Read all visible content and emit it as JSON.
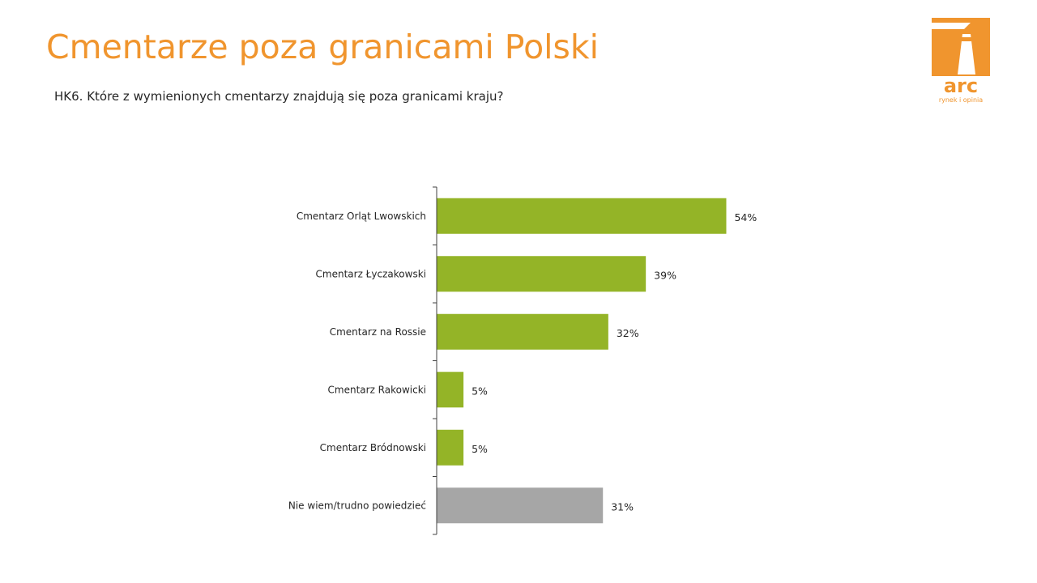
{
  "title": "Cmentarze poza granicami Polski",
  "question": "HK6. Które z wymienionych cmentarzy znajdują się poza granicami kraju?",
  "logo": {
    "text": "arc",
    "tagline": "rynek i opinia",
    "color": "#f0952e"
  },
  "colors": {
    "title": "#f0952e",
    "bar_primary": "#94b427",
    "bar_secondary": "#a6a6a6",
    "axis": "#404040",
    "text": "#262626"
  },
  "chart_data": {
    "type": "bar",
    "orientation": "horizontal",
    "categories": [
      "Cmentarz Orląt Lwowskich",
      "Cmentarz Łyczakowski",
      "Cmentarz na Rossie",
      "Cmentarz Rakowicki",
      "Cmentarz Bródnowski",
      "Nie wiem/trudno powiedzieć"
    ],
    "values": [
      54,
      39,
      32,
      5,
      5,
      31
    ],
    "value_labels": [
      "54%",
      "39%",
      "32%",
      "5%",
      "5%",
      "31%"
    ],
    "bar_colors": [
      "#94b427",
      "#94b427",
      "#94b427",
      "#94b427",
      "#94b427",
      "#a6a6a6"
    ],
    "unit": "%",
    "xlim": [
      0,
      100
    ],
    "grid": false,
    "legend": "none",
    "title": "",
    "xlabel": "",
    "ylabel": ""
  }
}
